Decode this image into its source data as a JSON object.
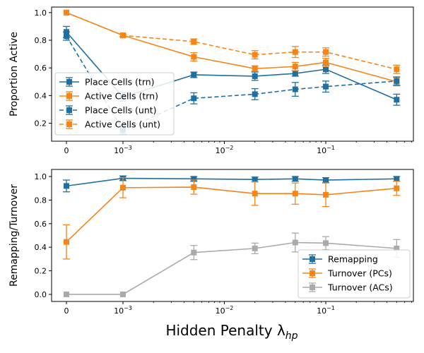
{
  "figure": {
    "xlabel": "Hidden Penalty λ",
    "xlabel_subscript": "hp"
  },
  "x_tick_labels": [
    "0",
    "10",
    "10",
    "10"
  ],
  "x_tick_exponents": [
    "",
    "−3",
    "−2",
    "−1"
  ],
  "colors": {
    "blue": "#1f6fa3",
    "orange": "#f58518",
    "gray": "#aaaaaa"
  },
  "chart_data": [
    {
      "type": "line",
      "ylabel": "Proportion Active",
      "xscale": "symlog",
      "x": [
        0,
        0.001,
        0.005,
        0.02,
        0.05,
        0.1,
        0.5
      ],
      "ylim": [
        0.07,
        1.04
      ],
      "yticks": [
        "0.2",
        "0.4",
        "0.6",
        "0.8",
        "1.0"
      ],
      "legend_position": "lower-left",
      "series": [
        {
          "name": "Place Cells (trn)",
          "color": "#1f6fa3",
          "style": "solid",
          "values": [
            0.86,
            0.39,
            0.55,
            0.54,
            0.56,
            0.59,
            0.37
          ],
          "errors": [
            0.04,
            0.03,
            0.02,
            0.03,
            0.02,
            0.03,
            0.04
          ]
        },
        {
          "name": "Active Cells (trn)",
          "color": "#f58518",
          "style": "solid",
          "values": [
            1.0,
            0.835,
            0.68,
            0.595,
            0.61,
            0.64,
            0.5
          ],
          "errors": [
            0.0,
            0.01,
            0.03,
            0.02,
            0.03,
            0.03,
            0.03
          ]
        },
        {
          "name": "Place Cells (unt)",
          "color": "#1f6fa3",
          "style": "dashed",
          "values": [
            0.83,
            0.15,
            0.38,
            0.41,
            0.445,
            0.465,
            0.505
          ],
          "errors": [
            0.03,
            0.03,
            0.04,
            0.04,
            0.05,
            0.04,
            0.03
          ]
        },
        {
          "name": "Active Cells (unt)",
          "color": "#f58518",
          "style": "dashed",
          "values": [
            1.0,
            0.835,
            0.79,
            0.695,
            0.715,
            0.715,
            0.59
          ],
          "errors": [
            0.0,
            0.01,
            0.02,
            0.03,
            0.04,
            0.03,
            0.03
          ]
        }
      ]
    },
    {
      "type": "line",
      "ylabel": "Remapping/Turnover",
      "xscale": "symlog",
      "x": [
        0,
        0.001,
        0.005,
        0.02,
        0.05,
        0.1,
        0.5
      ],
      "ylim": [
        -0.06,
        1.06
      ],
      "yticks": [
        "0.0",
        "0.2",
        "0.4",
        "0.6",
        "0.8",
        "1.0"
      ],
      "legend_position": "lower-right",
      "series": [
        {
          "name": "Remapping",
          "color": "#1f6fa3",
          "style": "solid",
          "values": [
            0.92,
            0.985,
            0.98,
            0.975,
            0.98,
            0.97,
            0.98
          ],
          "errors": [
            0.05,
            0.02,
            0.02,
            0.02,
            0.02,
            0.02,
            0.02
          ]
        },
        {
          "name": "Turnover (PCs)",
          "color": "#f58518",
          "style": "solid",
          "values": [
            0.445,
            0.905,
            0.91,
            0.855,
            0.855,
            0.845,
            0.9
          ],
          "errors": [
            0.145,
            0.085,
            0.06,
            0.1,
            0.09,
            0.1,
            0.06
          ]
        },
        {
          "name": "Turnover (ACs)",
          "color": "#aaaaaa",
          "style": "solid",
          "values": [
            0.0,
            0.0,
            0.355,
            0.39,
            0.44,
            0.435,
            0.39
          ],
          "errors": [
            0.0,
            0.0,
            0.06,
            0.045,
            0.08,
            0.055,
            0.075
          ]
        }
      ]
    }
  ]
}
